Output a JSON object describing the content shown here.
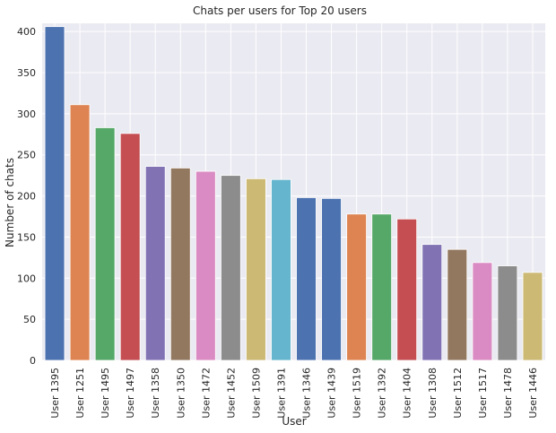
{
  "chart_data": {
    "type": "bar",
    "title": "Chats per users for Top 20 users",
    "xlabel": "User",
    "ylabel": "Number of chats",
    "ylim": [
      0,
      410
    ],
    "yticks": [
      0,
      50,
      100,
      150,
      200,
      250,
      300,
      350,
      400
    ],
    "grid": true,
    "categories": [
      "User 1395",
      "User 1251",
      "User 1495",
      "User 1497",
      "User 1358",
      "User 1350",
      "User 1472",
      "User 1452",
      "User 1509",
      "User 1391",
      "User 1346",
      "User 1439",
      "User 1519",
      "User 1392",
      "User 1404",
      "User 1308",
      "User 1512",
      "User 1517",
      "User 1478",
      "User 1446"
    ],
    "values": [
      406,
      311,
      283,
      276,
      236,
      234,
      230,
      225,
      221,
      220,
      198,
      197,
      178,
      178,
      172,
      141,
      135,
      119,
      115,
      107
    ],
    "colors": [
      "#4c72b0",
      "#dd8452",
      "#55a868",
      "#c44e52",
      "#8172b3",
      "#937860",
      "#da8bc3",
      "#8c8c8c",
      "#ccb974",
      "#64b5cd",
      "#4c72b0",
      "#4c72b0",
      "#dd8452",
      "#55a868",
      "#c44e52",
      "#8172b3",
      "#937860",
      "#da8bc3",
      "#8c8c8c",
      "#ccb974"
    ],
    "background": "#eaeaf2"
  }
}
